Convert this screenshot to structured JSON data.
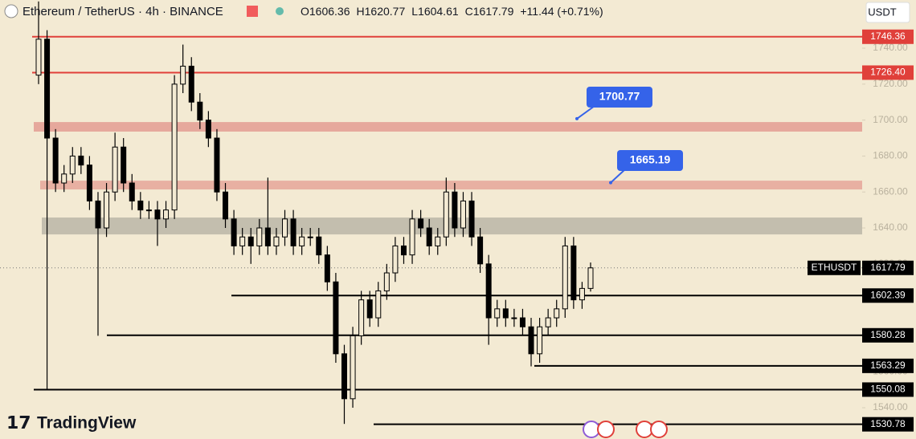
{
  "header": {
    "symbol": "Ethereum / TetherUS · 4h · BINANCE",
    "ohlc": [
      {
        "label": "O",
        "value": 1606.36
      },
      {
        "label": "H",
        "value": 1620.77
      },
      {
        "label": "L",
        "value": 1604.61
      },
      {
        "label": "C",
        "value": 1617.79
      }
    ],
    "change": "+11.44 (+0.71%)",
    "currency": "USDT"
  },
  "brand": "TradingView",
  "chart_data": {
    "type": "candlestick",
    "ylim": [
      1522.6,
      1766.8
    ],
    "yticks": [
      {
        "value": 1540,
        "label": "1540.00"
      },
      {
        "value": 1560,
        "label": "1560.00"
      },
      {
        "value": 1580,
        "label": "1580.00"
      },
      {
        "value": 1600,
        "label": "1600.00"
      },
      {
        "value": 1620,
        "label": "1620.00"
      },
      {
        "value": 1640,
        "label": "1640.00"
      },
      {
        "value": 1660,
        "label": "1660.00"
      },
      {
        "value": 1680,
        "label": "1680.00"
      },
      {
        "value": 1700,
        "label": "1700.00"
      },
      {
        "value": 1720,
        "label": "1720.00"
      },
      {
        "value": 1740,
        "label": "1740.00"
      }
    ],
    "series": [
      {
        "name": "ETHUSDT",
        "color": "#000000",
        "open": [
          1725,
          1745,
          1690,
          1665,
          1670,
          1680,
          1675,
          1655,
          1640,
          1660,
          1685,
          1665,
          1655,
          1650,
          1650,
          1645,
          1650,
          1720,
          1730,
          1710,
          1700,
          1690,
          1660,
          1645,
          1630,
          1635,
          1630,
          1640,
          1630,
          1635,
          1645,
          1630,
          1635,
          1635,
          1625,
          1610,
          1570,
          1545,
          1580,
          1600,
          1590,
          1605,
          1615,
          1630,
          1625,
          1645,
          1640,
          1630,
          1635,
          1660,
          1640,
          1655,
          1635,
          1620,
          1590,
          1595,
          1590,
          1590,
          1585,
          1570,
          1585,
          1590,
          1595,
          1630,
          1600,
          1606.36
        ],
        "high": [
          1766,
          1750,
          1695,
          1675,
          1685,
          1685,
          1680,
          1660,
          1665,
          1693,
          1690,
          1670,
          1660,
          1655,
          1655,
          1655,
          1725,
          1742,
          1735,
          1715,
          1705,
          1695,
          1665,
          1650,
          1640,
          1640,
          1645,
          1668,
          1640,
          1650,
          1650,
          1640,
          1640,
          1640,
          1630,
          1615,
          1575,
          1585,
          1605,
          1605,
          1610,
          1620,
          1635,
          1635,
          1650,
          1650,
          1645,
          1640,
          1668,
          1665,
          1660,
          1660,
          1640,
          1625,
          1600,
          1600,
          1595,
          1595,
          1590,
          1590,
          1595,
          1600,
          1635,
          1635,
          1610,
          1620.77
        ],
        "low": [
          1720,
          1550,
          1660,
          1660,
          1665,
          1670,
          1650,
          1580,
          1635,
          1655,
          1660,
          1650,
          1645,
          1645,
          1630,
          1640,
          1645,
          1715,
          1705,
          1695,
          1685,
          1655,
          1640,
          1625,
          1625,
          1620,
          1625,
          1625,
          1625,
          1630,
          1625,
          1625,
          1630,
          1620,
          1605,
          1565,
          1531,
          1540,
          1575,
          1585,
          1585,
          1600,
          1610,
          1620,
          1620,
          1635,
          1625,
          1625,
          1630,
          1635,
          1635,
          1630,
          1615,
          1575,
          1585,
          1585,
          1585,
          1580,
          1563,
          1565,
          1580,
          1585,
          1590,
          1595,
          1595,
          1604.61
        ],
        "close": [
          1745,
          1690,
          1665,
          1670,
          1680,
          1675,
          1655,
          1640,
          1660,
          1685,
          1665,
          1655,
          1650,
          1650,
          1645,
          1650,
          1720,
          1730,
          1710,
          1700,
          1690,
          1660,
          1645,
          1630,
          1635,
          1630,
          1640,
          1630,
          1635,
          1645,
          1630,
          1635,
          1635,
          1625,
          1610,
          1570,
          1545,
          1580,
          1600,
          1590,
          1605,
          1615,
          1630,
          1625,
          1645,
          1640,
          1630,
          1635,
          1660,
          1640,
          1655,
          1635,
          1620,
          1590,
          1595,
          1590,
          1590,
          1585,
          1570,
          1585,
          1590,
          1595,
          1630,
          1600,
          1606.36,
          1617.79
        ]
      }
    ],
    "last_price": 1617.79,
    "levels": [
      {
        "value": 1746.36,
        "color": "#e0403a"
      },
      {
        "value": 1726.4,
        "label": "1726.40",
        "color": "#e0403a"
      },
      {
        "value": 1602.39,
        "color": "#000000"
      },
      {
        "value": 1580.28,
        "color": "#000000"
      },
      {
        "value": 1563.29,
        "color": "#000000"
      },
      {
        "value": 1550.08,
        "color": "#000000"
      },
      {
        "value": 1530.78,
        "color": "#000000"
      }
    ],
    "zones": [
      {
        "from": 1693.6,
        "to": 1698.9,
        "color": "#e6a89c"
      },
      {
        "from": 1661.4,
        "to": 1666.3,
        "color": "#e8b0a2"
      },
      {
        "from": 1636.4,
        "to": 1645.8,
        "color": "#c3beae"
      }
    ],
    "callouts": [
      {
        "value": 1700.77,
        "color": "#3563e9"
      },
      {
        "value": 1665.19,
        "color": "#3563e9"
      }
    ]
  }
}
